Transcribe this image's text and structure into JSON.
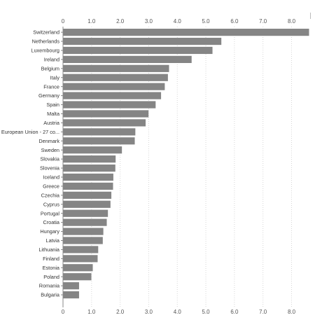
{
  "colors": {
    "bar": "#858585",
    "grid": "#d6d6d6",
    "axis": "#888888"
  },
  "chart_data": {
    "type": "bar",
    "orientation": "horizontal",
    "categories": [
      "Switzerland",
      "Netherlands",
      "Luxembourg",
      "Ireland",
      "Belgium",
      "Italy",
      "France",
      "Germany",
      "Spain",
      "Malta",
      "Austria",
      "European Union - 27 co...",
      "Denmark",
      "Sweden",
      "Slovakia",
      "Slovenia",
      "Iceland",
      "Greece",
      "Czechia",
      "Cyprus",
      "Portugal",
      "Croatia",
      "Hungary",
      "Latvia",
      "Lithuania",
      "Finland",
      "Estonia",
      "Poland",
      "Romania",
      "Bulgaria"
    ],
    "values": [
      8.6,
      5.53,
      5.22,
      4.49,
      3.7,
      3.66,
      3.55,
      3.42,
      3.23,
      2.98,
      2.88,
      2.52,
      2.5,
      2.05,
      1.83,
      1.82,
      1.75,
      1.74,
      1.68,
      1.65,
      1.56,
      1.52,
      1.4,
      1.38,
      1.22,
      1.2,
      1.03,
      0.98,
      0.55,
      0.55
    ],
    "xlim": [
      0,
      8.6
    ],
    "x_ticks": [
      "0",
      "1.0",
      "2.0",
      "3.0",
      "4.0",
      "5.0",
      "6.0",
      "7.0",
      "8.0"
    ],
    "x_tick_values": [
      0,
      1,
      2,
      3,
      4,
      5,
      6,
      7,
      8
    ],
    "grid": true,
    "title": "",
    "xlabel": "",
    "ylabel": ""
  }
}
